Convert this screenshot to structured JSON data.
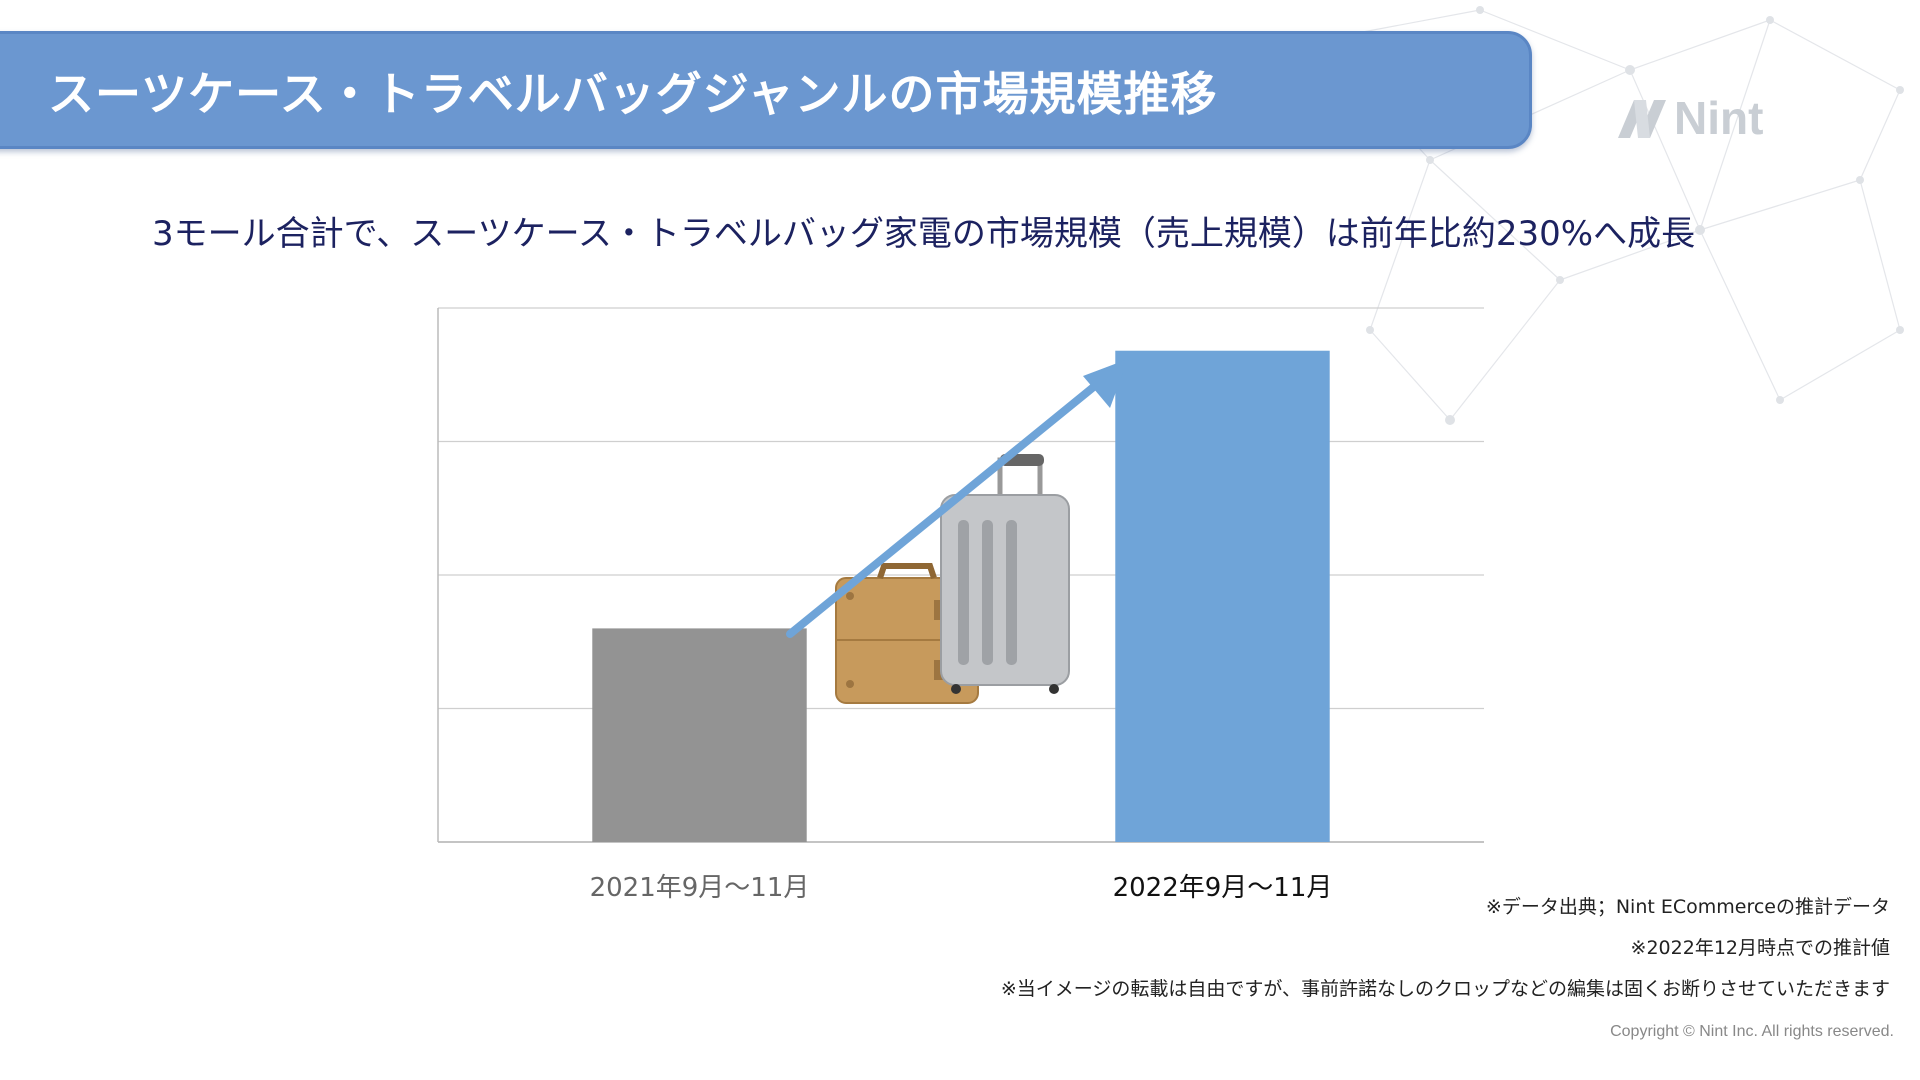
{
  "header": {
    "title": "スーツケース・トラベルバッグジャンルの市場規模推移"
  },
  "brand": {
    "logo_text": "Nint",
    "logo_color": "#c9ced4"
  },
  "headline": "3モール合計で、スーツケース・トラベルバッグ家電の市場規模（売上規模）は前年比約230%へ成長",
  "chart_data": {
    "type": "bar",
    "categories": [
      "2021年9月〜11月",
      "2022年9月〜11月"
    ],
    "values": [
      100,
      230
    ],
    "ylim": [
      0,
      250
    ],
    "grid": true,
    "y_tick_labels_shown": false,
    "bar_colors": [
      "#939393",
      "#6fa4d8"
    ],
    "trend_arrow_color": "#6fa4d8",
    "illustration": [
      "suitcase-icon",
      "rolling-suitcase-icon"
    ]
  },
  "notes": [
    "※データ出典；Nint ECommerceの推計データ",
    "※2022年12月時点での推計値",
    "※当イメージの転載は自由ですが、事前許諾なしのクロップなどの編集は固くお断りさせていただきます"
  ],
  "footer": {
    "copyright": "Copyright © Nint Inc. All rights reserved."
  },
  "colors": {
    "banner": "#6b97d0",
    "headline_text": "#1c2260"
  }
}
